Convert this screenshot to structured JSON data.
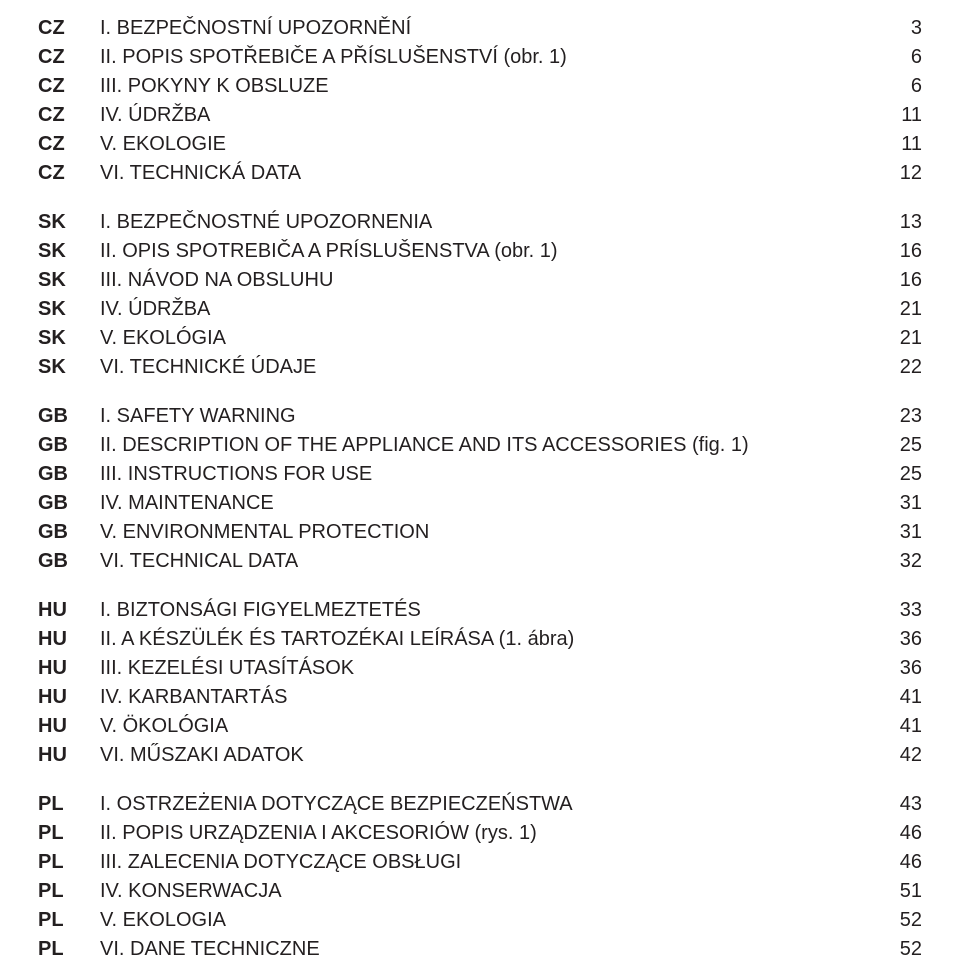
{
  "text_color": "#231f20",
  "background_color": "#ffffff",
  "font_size_pt": 15,
  "sections": [
    {
      "lang": "CZ",
      "items": [
        {
          "label": "I. BEZPEČNOSTNÍ UPOZORNĚNÍ",
          "page": "3"
        },
        {
          "label": "II. POPIS SPOTŘEBIČE A PŘÍSLUŠENSTVÍ (obr. 1)",
          "page": "6"
        },
        {
          "label": "III. POKYNY K OBSLUZE",
          "page": "6"
        },
        {
          "label": "IV. ÚDRŽBA",
          "page": "11"
        },
        {
          "label": "V. EKOLOGIE",
          "page": "11"
        },
        {
          "label": "VI. TECHNICKÁ DATA",
          "page": "12"
        }
      ]
    },
    {
      "lang": "SK",
      "items": [
        {
          "label": "I. BEZPEČNOSTNÉ UPOZORNENIA",
          "page": "13"
        },
        {
          "label": "II. OPIS SPOTREBIČA A PRÍSLUŠENSTVA (obr. 1)",
          "page": "16"
        },
        {
          "label": "III. NÁVOD NA OBSLUHU",
          "page": "16"
        },
        {
          "label": "IV. ÚDRŽBA",
          "page": "21"
        },
        {
          "label": "V. EKOLÓGIA",
          "page": "21"
        },
        {
          "label": "VI. TECHNICKÉ ÚDAJE",
          "page": "22"
        }
      ]
    },
    {
      "lang": "GB",
      "items": [
        {
          "label": "I. SAFETY WARNING",
          "page": "23"
        },
        {
          "label": "II. DESCRIPTION OF THE APPLIANCE AND ITS ACCESSORIES (fig. 1)",
          "page": "25"
        },
        {
          "label": "III. INSTRUCTIONS FOR USE",
          "page": "25"
        },
        {
          "label": "IV. MAINTENANCE",
          "page": "31"
        },
        {
          "label": "V. ENVIRONMENTAL PROTECTION",
          "page": "31"
        },
        {
          "label": "VI. TECHNICAL DATA",
          "page": "32"
        }
      ]
    },
    {
      "lang": "HU",
      "items": [
        {
          "label": "I. BIZTONSÁGI FIGYELMEZTETÉS",
          "page": "33"
        },
        {
          "label": "II. A KÉSZÜLÉK ÉS TARTOZÉKAI LEÍRÁSA (1. ábra)",
          "page": "36"
        },
        {
          "label": "III. KEZELÉSI UTASÍTÁSOK",
          "page": "36"
        },
        {
          "label": "IV. KARBANTARTÁS",
          "page": "41"
        },
        {
          "label": "V. ÖKOLÓGIA",
          "page": "41"
        },
        {
          "label": "VI. MŰSZAKI ADATOK",
          "page": "42"
        }
      ]
    },
    {
      "lang": "PL",
      "items": [
        {
          "label": "I. OSTRZEŻENIA DOTYCZĄCE BEZPIECZEŃSTWA",
          "page": "43"
        },
        {
          "label": "II. POPIS URZĄDZENIA I AKCESORIÓW (rys. 1)",
          "page": "46"
        },
        {
          "label": "III. ZALECENIA DOTYCZĄCE OBSŁUGI",
          "page": "46"
        },
        {
          "label": "IV. KONSERWACJA",
          "page": "51"
        },
        {
          "label": "V. EKOLOGIA",
          "page": "52"
        },
        {
          "label": "VI. DANE TECHNICZNE",
          "page": "52"
        }
      ]
    }
  ]
}
